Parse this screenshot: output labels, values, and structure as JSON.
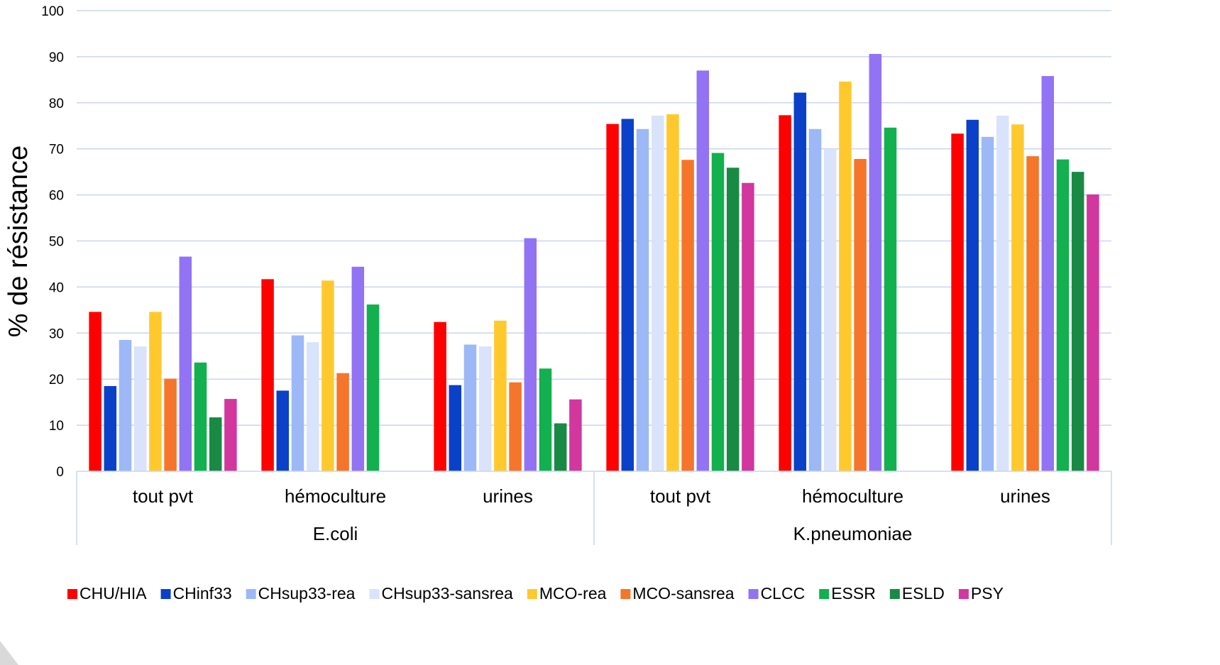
{
  "chart_data": {
    "type": "bar",
    "ylabel": "% de résistance",
    "xlabel": "",
    "ylim": [
      0,
      100
    ],
    "yticks": [
      0,
      10,
      20,
      30,
      40,
      50,
      60,
      70,
      80,
      90,
      100
    ],
    "grid": true,
    "legend_position": "bottom",
    "groups": [
      {
        "label": "E.coli",
        "categories": [
          "tout pvt",
          "hémoculture",
          "urines"
        ]
      },
      {
        "label": "K.pneumoniae",
        "categories": [
          "tout pvt",
          "hémoculture",
          "urines"
        ]
      }
    ],
    "categories": [
      "tout pvt",
      "hémoculture",
      "urines",
      "tout pvt",
      "hémoculture",
      "urines"
    ],
    "series": [
      {
        "name": "CHU/HIA",
        "color": "#ff0000",
        "values": [
          34.6,
          41.7,
          32.4,
          75.4,
          77.3,
          73.3
        ]
      },
      {
        "name": "CHinf33",
        "color": "#0b40c8",
        "values": [
          18.5,
          17.5,
          18.7,
          76.5,
          82.2,
          76.3
        ]
      },
      {
        "name": "CHsup33-rea",
        "color": "#9cb8f6",
        "values": [
          28.5,
          29.5,
          27.5,
          74.3,
          74.3,
          72.6
        ]
      },
      {
        "name": "CHsup33-sansrea",
        "color": "#d9e3fb",
        "values": [
          27.1,
          28.0,
          27.1,
          77.2,
          70.0,
          77.2
        ]
      },
      {
        "name": "MCO-rea",
        "color": "#ffc92e",
        "values": [
          34.6,
          41.4,
          32.7,
          77.5,
          84.6,
          75.3
        ]
      },
      {
        "name": "MCO-sansrea",
        "color": "#f5752a",
        "values": [
          20.1,
          21.3,
          19.3,
          67.6,
          67.8,
          68.4
        ]
      },
      {
        "name": "CLCC",
        "color": "#9273f3",
        "values": [
          46.6,
          44.4,
          50.6,
          87.0,
          90.6,
          85.8
        ]
      },
      {
        "name": "ESSR",
        "color": "#12b04f",
        "values": [
          23.6,
          36.2,
          22.3,
          69.1,
          74.6,
          67.7
        ]
      },
      {
        "name": "ESLD",
        "color": "#188a44",
        "values": [
          11.7,
          null,
          10.4,
          65.9,
          null,
          65.0
        ]
      },
      {
        "name": "PSY",
        "color": "#d2379e",
        "values": [
          15.7,
          null,
          15.6,
          62.6,
          null,
          60.1
        ]
      }
    ]
  }
}
